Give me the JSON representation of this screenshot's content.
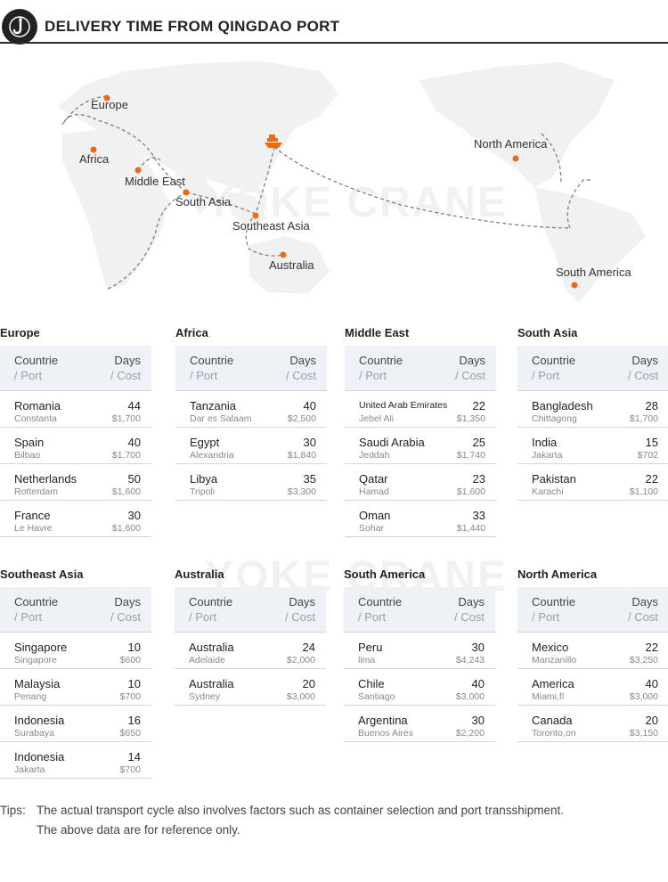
{
  "header": {
    "title": "DELIVERY TIME FROM QINGDAO PORT",
    "logo_icon": "hook-icon"
  },
  "watermark": "YOKE CRANE",
  "map": {
    "labels": {
      "europe": "Europe",
      "africa": "Africa",
      "middle_east": "Middle East",
      "south_asia": "South Asia",
      "southeast_asia": "Southeast Asia",
      "australia": "Australia",
      "north_america": "North America",
      "south_america": "South America"
    },
    "origin_icon": "ship-icon",
    "accent_color": "#ee6a12",
    "route_color": "#777777"
  },
  "table_header": {
    "col1": "Countrie",
    "col1_sub": "/ Port",
    "col2": "Days",
    "col2_sub": "/ Cost"
  },
  "regions": [
    {
      "name": "Europe",
      "rows": [
        {
          "country": "Romania",
          "port": "Constanta",
          "days": "44",
          "cost": "$1,700"
        },
        {
          "country": "Spain",
          "port": "Bilbao",
          "days": "40",
          "cost": "$1,700"
        },
        {
          "country": "Netherlands",
          "port": "Rotterdam",
          "days": "50",
          "cost": "$1,600"
        },
        {
          "country": "France",
          "port": "Le Havre",
          "days": "30",
          "cost": "$1,600"
        }
      ]
    },
    {
      "name": "Africa",
      "rows": [
        {
          "country": "Tanzania",
          "port": "Dar es Salaam",
          "days": "40",
          "cost": "$2,500"
        },
        {
          "country": "Egypt",
          "port": "Alexandria",
          "days": "30",
          "cost": "$1,840"
        },
        {
          "country": "Libya",
          "port": "Tripoli",
          "days": "35",
          "cost": "$3,300"
        }
      ]
    },
    {
      "name": "Middle East",
      "rows": [
        {
          "country": "United Arab Emirates",
          "port": "Jebel Ali",
          "days": "22",
          "cost": "$1,350"
        },
        {
          "country": "Saudi Arabia",
          "port": "Jeddah",
          "days": "25",
          "cost": "$1,740"
        },
        {
          "country": "Qatar",
          "port": "Hamad",
          "days": "23",
          "cost": "$1,600"
        },
        {
          "country": "Oman",
          "port": "Sohar",
          "days": "33",
          "cost": "$1,440"
        }
      ]
    },
    {
      "name": "South Asia",
      "rows": [
        {
          "country": "Bangladesh",
          "port": "Chittagong",
          "days": "28",
          "cost": "$1,700"
        },
        {
          "country": "India",
          "port": "Jakarta",
          "days": "15",
          "cost": "$702"
        },
        {
          "country": "Pakistan",
          "port": "Karachi",
          "days": "22",
          "cost": "$1,100"
        }
      ]
    },
    {
      "name": "Southeast Asia",
      "rows": [
        {
          "country": "Singapore",
          "port": "Singapore",
          "days": "10",
          "cost": "$600"
        },
        {
          "country": "Malaysia",
          "port": "Penang",
          "days": "10",
          "cost": "$700"
        },
        {
          "country": "Indonesia",
          "port": "Surabaya",
          "days": "16",
          "cost": "$650"
        },
        {
          "country": "Indonesia",
          "port": "Jakarta",
          "days": "14",
          "cost": "$700"
        }
      ]
    },
    {
      "name": "Australia",
      "rows": [
        {
          "country": "Australia",
          "port": "Adelaide",
          "days": "24",
          "cost": "$2,000"
        },
        {
          "country": "Australia",
          "port": "Sydney",
          "days": "20",
          "cost": "$3,000"
        }
      ]
    },
    {
      "name": "South America",
      "rows": [
        {
          "country": "Peru",
          "port": "lima",
          "days": "30",
          "cost": "$4,243"
        },
        {
          "country": "Chile",
          "port": "Santiago",
          "days": "40",
          "cost": "$3,000"
        },
        {
          "country": "Argentina",
          "port": "Buenos Aires",
          "days": "30",
          "cost": "$2,200"
        }
      ]
    },
    {
      "name": "North America",
      "rows": [
        {
          "country": "Mexico",
          "port": "Manzanillo",
          "days": "22",
          "cost": "$3,250"
        },
        {
          "country": "America",
          "port": "Miami,fl",
          "days": "40",
          "cost": "$3,000"
        },
        {
          "country": "Canada",
          "port": "Toronto,on",
          "days": "20",
          "cost": "$3,150"
        }
      ]
    }
  ],
  "tips": {
    "label": "Tips:",
    "line1": "The actual transport cycle also involves factors such as container selection and port transshipment.",
    "line2": "The above data are for reference only."
  }
}
